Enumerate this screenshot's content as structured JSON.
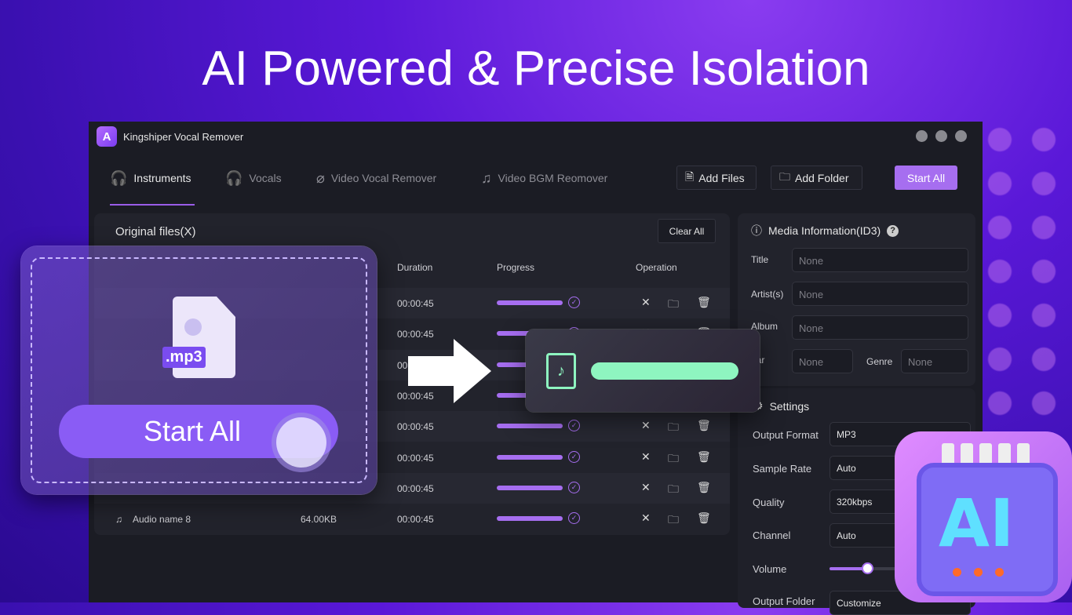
{
  "headline": "AI Powered & Precise Isolation",
  "app": {
    "title": "Kingshiper Vocal Remover",
    "logo": "A"
  },
  "tabs": [
    {
      "label": "Instruments",
      "icon": "headphones-phone-icon"
    },
    {
      "label": "Vocals",
      "icon": "headphones-mic-icon"
    },
    {
      "label": "Video Vocal Remover",
      "icon": "mic-off-icon"
    },
    {
      "label": "Video BGM Reomover",
      "icon": "music-off-icon"
    }
  ],
  "toolbar": {
    "add_files": "Add Files",
    "add_folder": "Add Folder",
    "start_all": "Start All"
  },
  "files": {
    "title": "Original files(X)",
    "clear_all": "Clear All",
    "columns": [
      "Duration",
      "Progress",
      "Operation"
    ],
    "rows": [
      {
        "duration": "00:00:45"
      },
      {
        "duration": "00:00:45"
      },
      {
        "duration": "00:00:45"
      },
      {
        "duration": "00:00:45"
      },
      {
        "duration": "00:00:45"
      },
      {
        "duration": "00:00:45"
      },
      {
        "duration": "00:00:45"
      },
      {
        "name": "Audio name 8",
        "size": "64.00KB",
        "duration": "00:00:45"
      }
    ],
    "progress_percent": 100
  },
  "media": {
    "title": "Media Information(ID3)",
    "title_label": "Title",
    "artist_label": "Artist(s)",
    "album_label": "Album",
    "year_label": "ear",
    "genre_label": "Genre",
    "placeholder": "None"
  },
  "settings": {
    "title": "Settings",
    "output_format_label": "Output Format",
    "output_format": "MP3",
    "sample_rate_label": "Sample Rate",
    "sample_rate": "Auto",
    "quality_label": "Quality",
    "quality": "320kbps",
    "channel_label": "Channel",
    "channel": "Auto",
    "volume_label": "Volume",
    "volume_percent": 40,
    "output_folder_label": "Output Folder",
    "output_folder": "Customize"
  },
  "promo": {
    "file_badge": ".mp3",
    "start_all": "Start All",
    "chip_text": "AI"
  },
  "colors": {
    "accent": "#a66ef0",
    "progress_green": "#8ef5c0"
  }
}
